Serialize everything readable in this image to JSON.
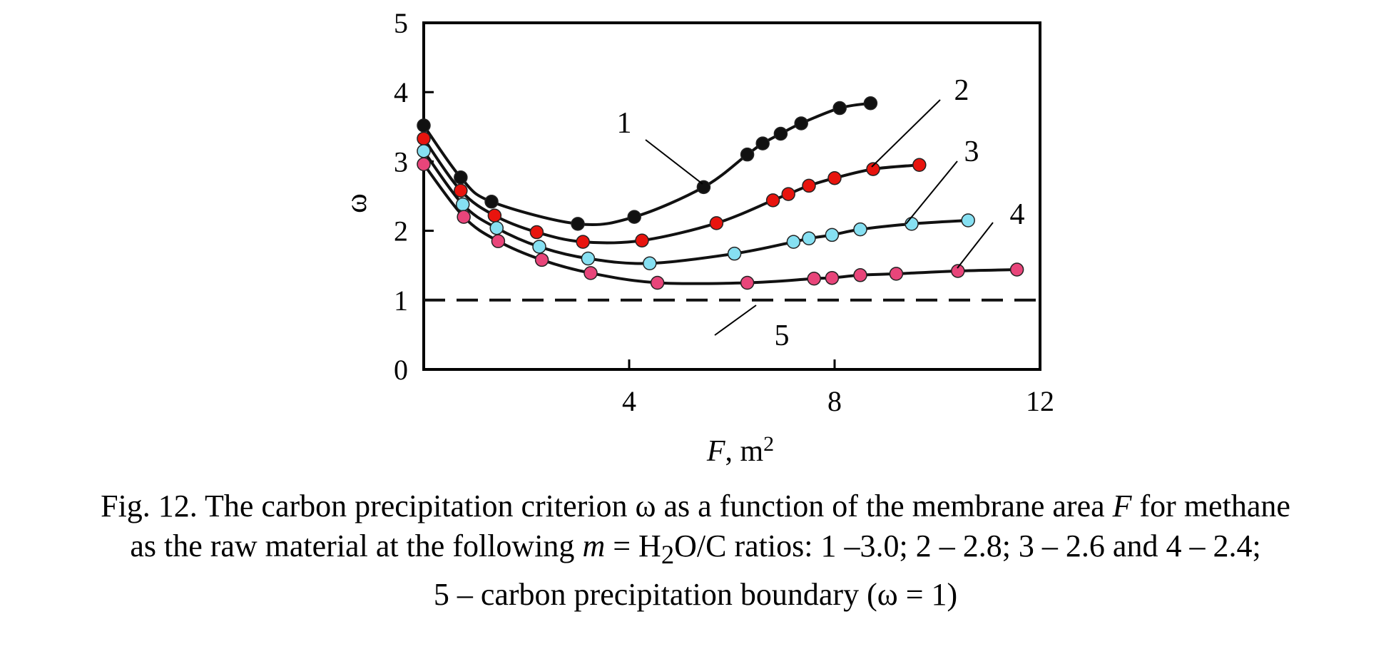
{
  "chart_data": {
    "type": "line",
    "xlabel_italic": "F",
    "xlabel_rest": ", m",
    "xlabel_sup": "2",
    "ylabel": "ω",
    "xlim": [
      0,
      12
    ],
    "ylim": [
      0,
      5
    ],
    "xticks": [
      "4",
      "8",
      "12"
    ],
    "xtick_values": [
      4,
      8,
      12
    ],
    "yticks": [
      "0",
      "1",
      "2",
      "3",
      "4",
      "5"
    ],
    "ytick_values": [
      0,
      1,
      2,
      3,
      4,
      5
    ],
    "grid": false,
    "colors": {
      "black": "#111111",
      "red": "#e8140e",
      "cyan": "#86e0f2",
      "pink": "#e8457a",
      "line": "#111111"
    },
    "series": [
      {
        "name": "1",
        "marker_color": "#111111",
        "x": [
          0.0,
          0.72,
          1.32,
          3.0,
          4.1,
          5.45,
          6.3,
          6.6,
          6.95,
          7.35,
          8.1,
          8.7
        ],
        "y": [
          3.52,
          2.77,
          2.42,
          2.1,
          2.2,
          2.63,
          3.1,
          3.26,
          3.4,
          3.55,
          3.77,
          3.84
        ]
      },
      {
        "name": "2",
        "marker_color": "#e8140e",
        "x": [
          0.0,
          0.72,
          1.38,
          2.2,
          3.1,
          4.25,
          5.7,
          6.8,
          7.1,
          7.5,
          8.0,
          8.75,
          9.65
        ],
        "y": [
          3.33,
          2.58,
          2.22,
          1.98,
          1.84,
          1.86,
          2.11,
          2.44,
          2.53,
          2.65,
          2.76,
          2.89,
          2.95
        ]
      },
      {
        "name": "3",
        "marker_color": "#86e0f2",
        "x": [
          0.0,
          0.76,
          1.42,
          2.25,
          3.2,
          4.4,
          6.05,
          7.2,
          7.5,
          7.95,
          8.5,
          9.5,
          10.6
        ],
        "y": [
          3.15,
          2.38,
          2.04,
          1.77,
          1.6,
          1.53,
          1.67,
          1.84,
          1.89,
          1.94,
          2.02,
          2.1,
          2.15
        ]
      },
      {
        "name": "4",
        "marker_color": "#e8457a",
        "x": [
          0.0,
          0.78,
          1.45,
          2.3,
          3.25,
          4.55,
          6.3,
          7.6,
          7.95,
          8.5,
          9.2,
          10.4,
          11.55
        ],
        "y": [
          2.96,
          2.2,
          1.85,
          1.58,
          1.39,
          1.25,
          1.25,
          1.31,
          1.32,
          1.36,
          1.38,
          1.42,
          1.44
        ]
      }
    ],
    "boundary": {
      "name": "5",
      "y": 1,
      "style": "dashed"
    },
    "annotations": [
      {
        "text": "1",
        "series": "1"
      },
      {
        "text": "2",
        "series": "2"
      },
      {
        "text": "3",
        "series": "3"
      },
      {
        "text": "4",
        "series": "4"
      },
      {
        "text": "5",
        "series": "5"
      }
    ]
  },
  "caption": {
    "line1_a": "Fig. 12. The carbon precipitation criterion ω as a function of the membrane area ",
    "line1_italic": "F",
    "line1_b": " for methane",
    "line2_a": "as the raw material at the following ",
    "line2_italic": "m",
    "line2_b": " = H",
    "line2_sub": "2",
    "line2_c": "O/C ratios: 1 –3.0; 2 – 2.8; 3 – 2.6 and 4 – 2.4;",
    "line3": "5 – carbon precipitation boundary (ω = 1)"
  }
}
